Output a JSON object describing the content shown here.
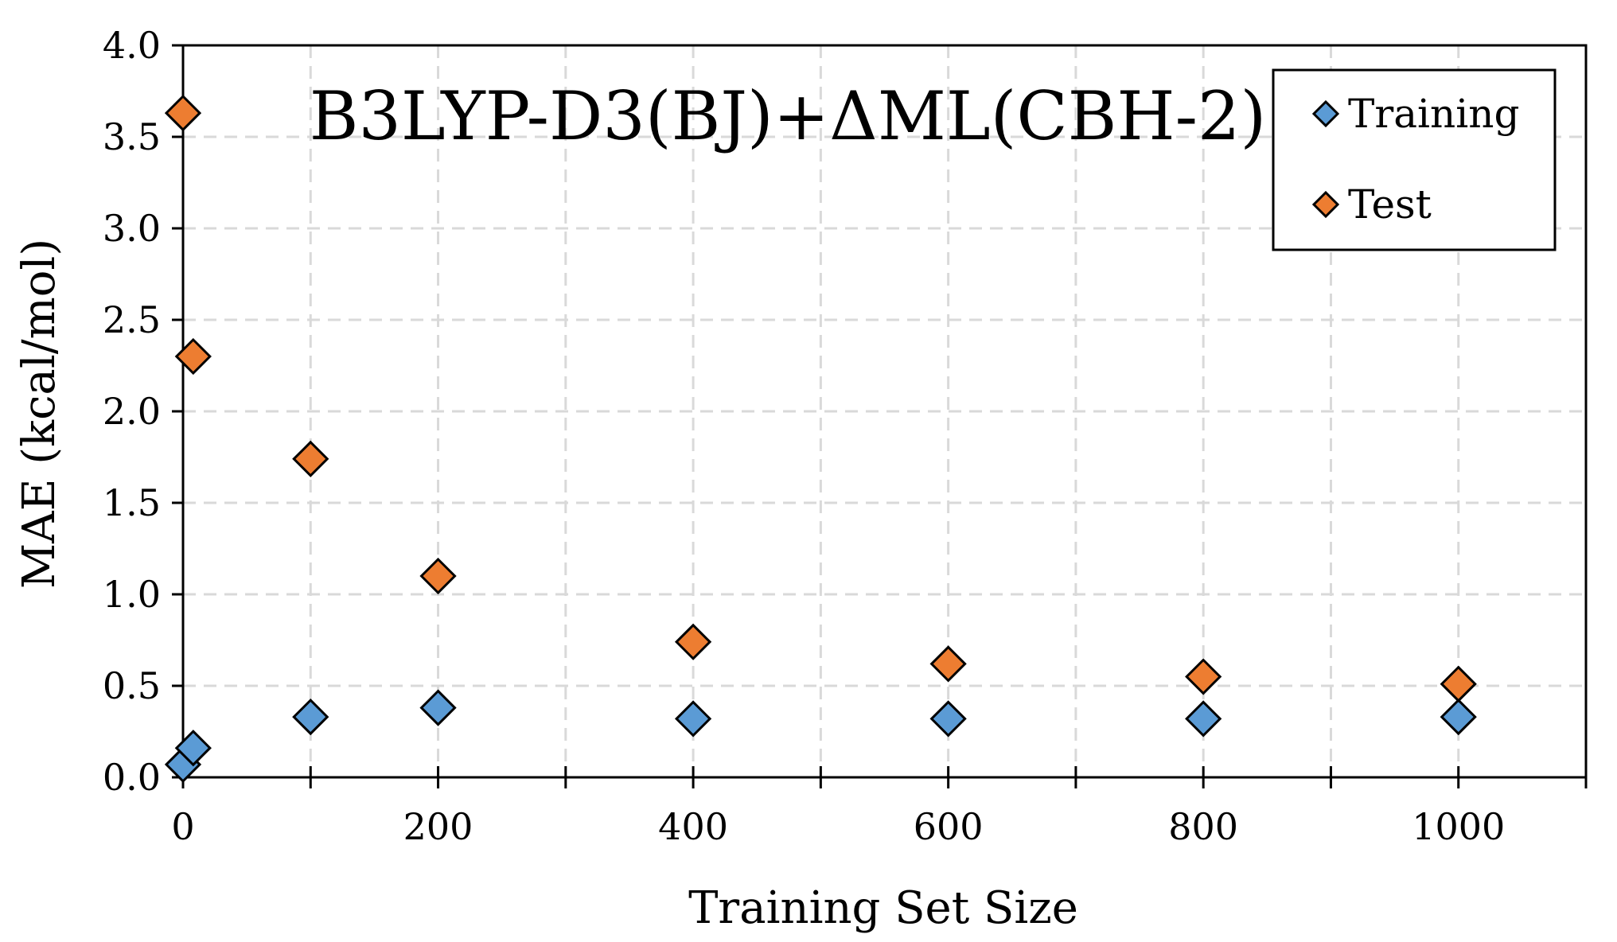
{
  "chart_data": {
    "type": "scatter",
    "title": "B3LYP-D3(BJ)+ΔML(CBH-2)",
    "xlabel": "Training Set Size",
    "ylabel": "MAE (kcal/mol)",
    "xlim": [
      0,
      1100
    ],
    "ylim": [
      0,
      4.0
    ],
    "x_tick_labels": [
      "0",
      "200",
      "400",
      "600",
      "800",
      "1000"
    ],
    "y_tick_labels": [
      "0.0",
      "0.5",
      "1.0",
      "1.5",
      "2.0",
      "2.5",
      "3.0",
      "3.5",
      "4.0"
    ],
    "grid": true,
    "legend_position": "top-right",
    "series": [
      {
        "name": "Training",
        "color": "#5b9bd5",
        "marker": "diamond",
        "points": [
          {
            "x": 0,
            "y": 0.07
          },
          {
            "x": 8,
            "y": 0.16
          },
          {
            "x": 100,
            "y": 0.33
          },
          {
            "x": 200,
            "y": 0.38
          },
          {
            "x": 400,
            "y": 0.32
          },
          {
            "x": 600,
            "y": 0.32
          },
          {
            "x": 800,
            "y": 0.32
          },
          {
            "x": 1000,
            "y": 0.33
          }
        ]
      },
      {
        "name": "Test",
        "color": "#ed7d31",
        "marker": "diamond",
        "points": [
          {
            "x": 0,
            "y": 3.63
          },
          {
            "x": 8,
            "y": 2.3
          },
          {
            "x": 100,
            "y": 1.74
          },
          {
            "x": 200,
            "y": 1.1
          },
          {
            "x": 400,
            "y": 0.74
          },
          {
            "x": 600,
            "y": 0.62
          },
          {
            "x": 800,
            "y": 0.55
          },
          {
            "x": 1000,
            "y": 0.51
          }
        ]
      }
    ]
  }
}
